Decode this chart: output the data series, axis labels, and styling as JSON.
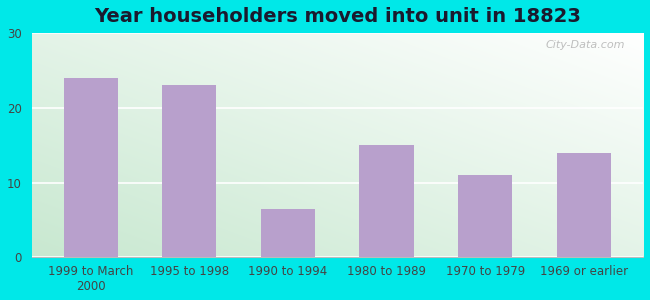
{
  "title": "Year householders moved into unit in 18823",
  "categories": [
    "1999 to March\n2000",
    "1995 to 1998",
    "1990 to 1994",
    "1980 to 1989",
    "1970 to 1979",
    "1969 or earlier"
  ],
  "values": [
    24,
    23,
    6.5,
    15,
    11,
    14
  ],
  "bar_color": "#b8a0cc",
  "background_outer": "#00e8e8",
  "background_plot_topleft": "#c8e8d0",
  "background_plot_bottomright": "#ffffff",
  "ylim": [
    0,
    30
  ],
  "yticks": [
    0,
    10,
    20,
    30
  ],
  "grid_color": "#dddddd",
  "title_fontsize": 14,
  "tick_fontsize": 8.5,
  "watermark": "City-Data.com"
}
